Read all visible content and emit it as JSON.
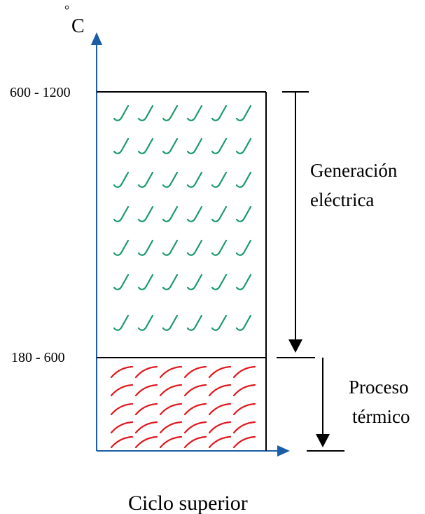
{
  "axis": {
    "unit": "°C",
    "axis_color": "#1a5ea8"
  },
  "levels": {
    "upper": "600 - 1200",
    "middle": "180 - 600"
  },
  "regions": {
    "generation": {
      "line1": "Generación",
      "line2": "eléctrica",
      "glyph_color": "#1a9a6a"
    },
    "thermal": {
      "line1": "Proceso",
      "line2": "térmico",
      "glyph_color": "#e0191f"
    }
  },
  "caption": "Ciclo superior"
}
